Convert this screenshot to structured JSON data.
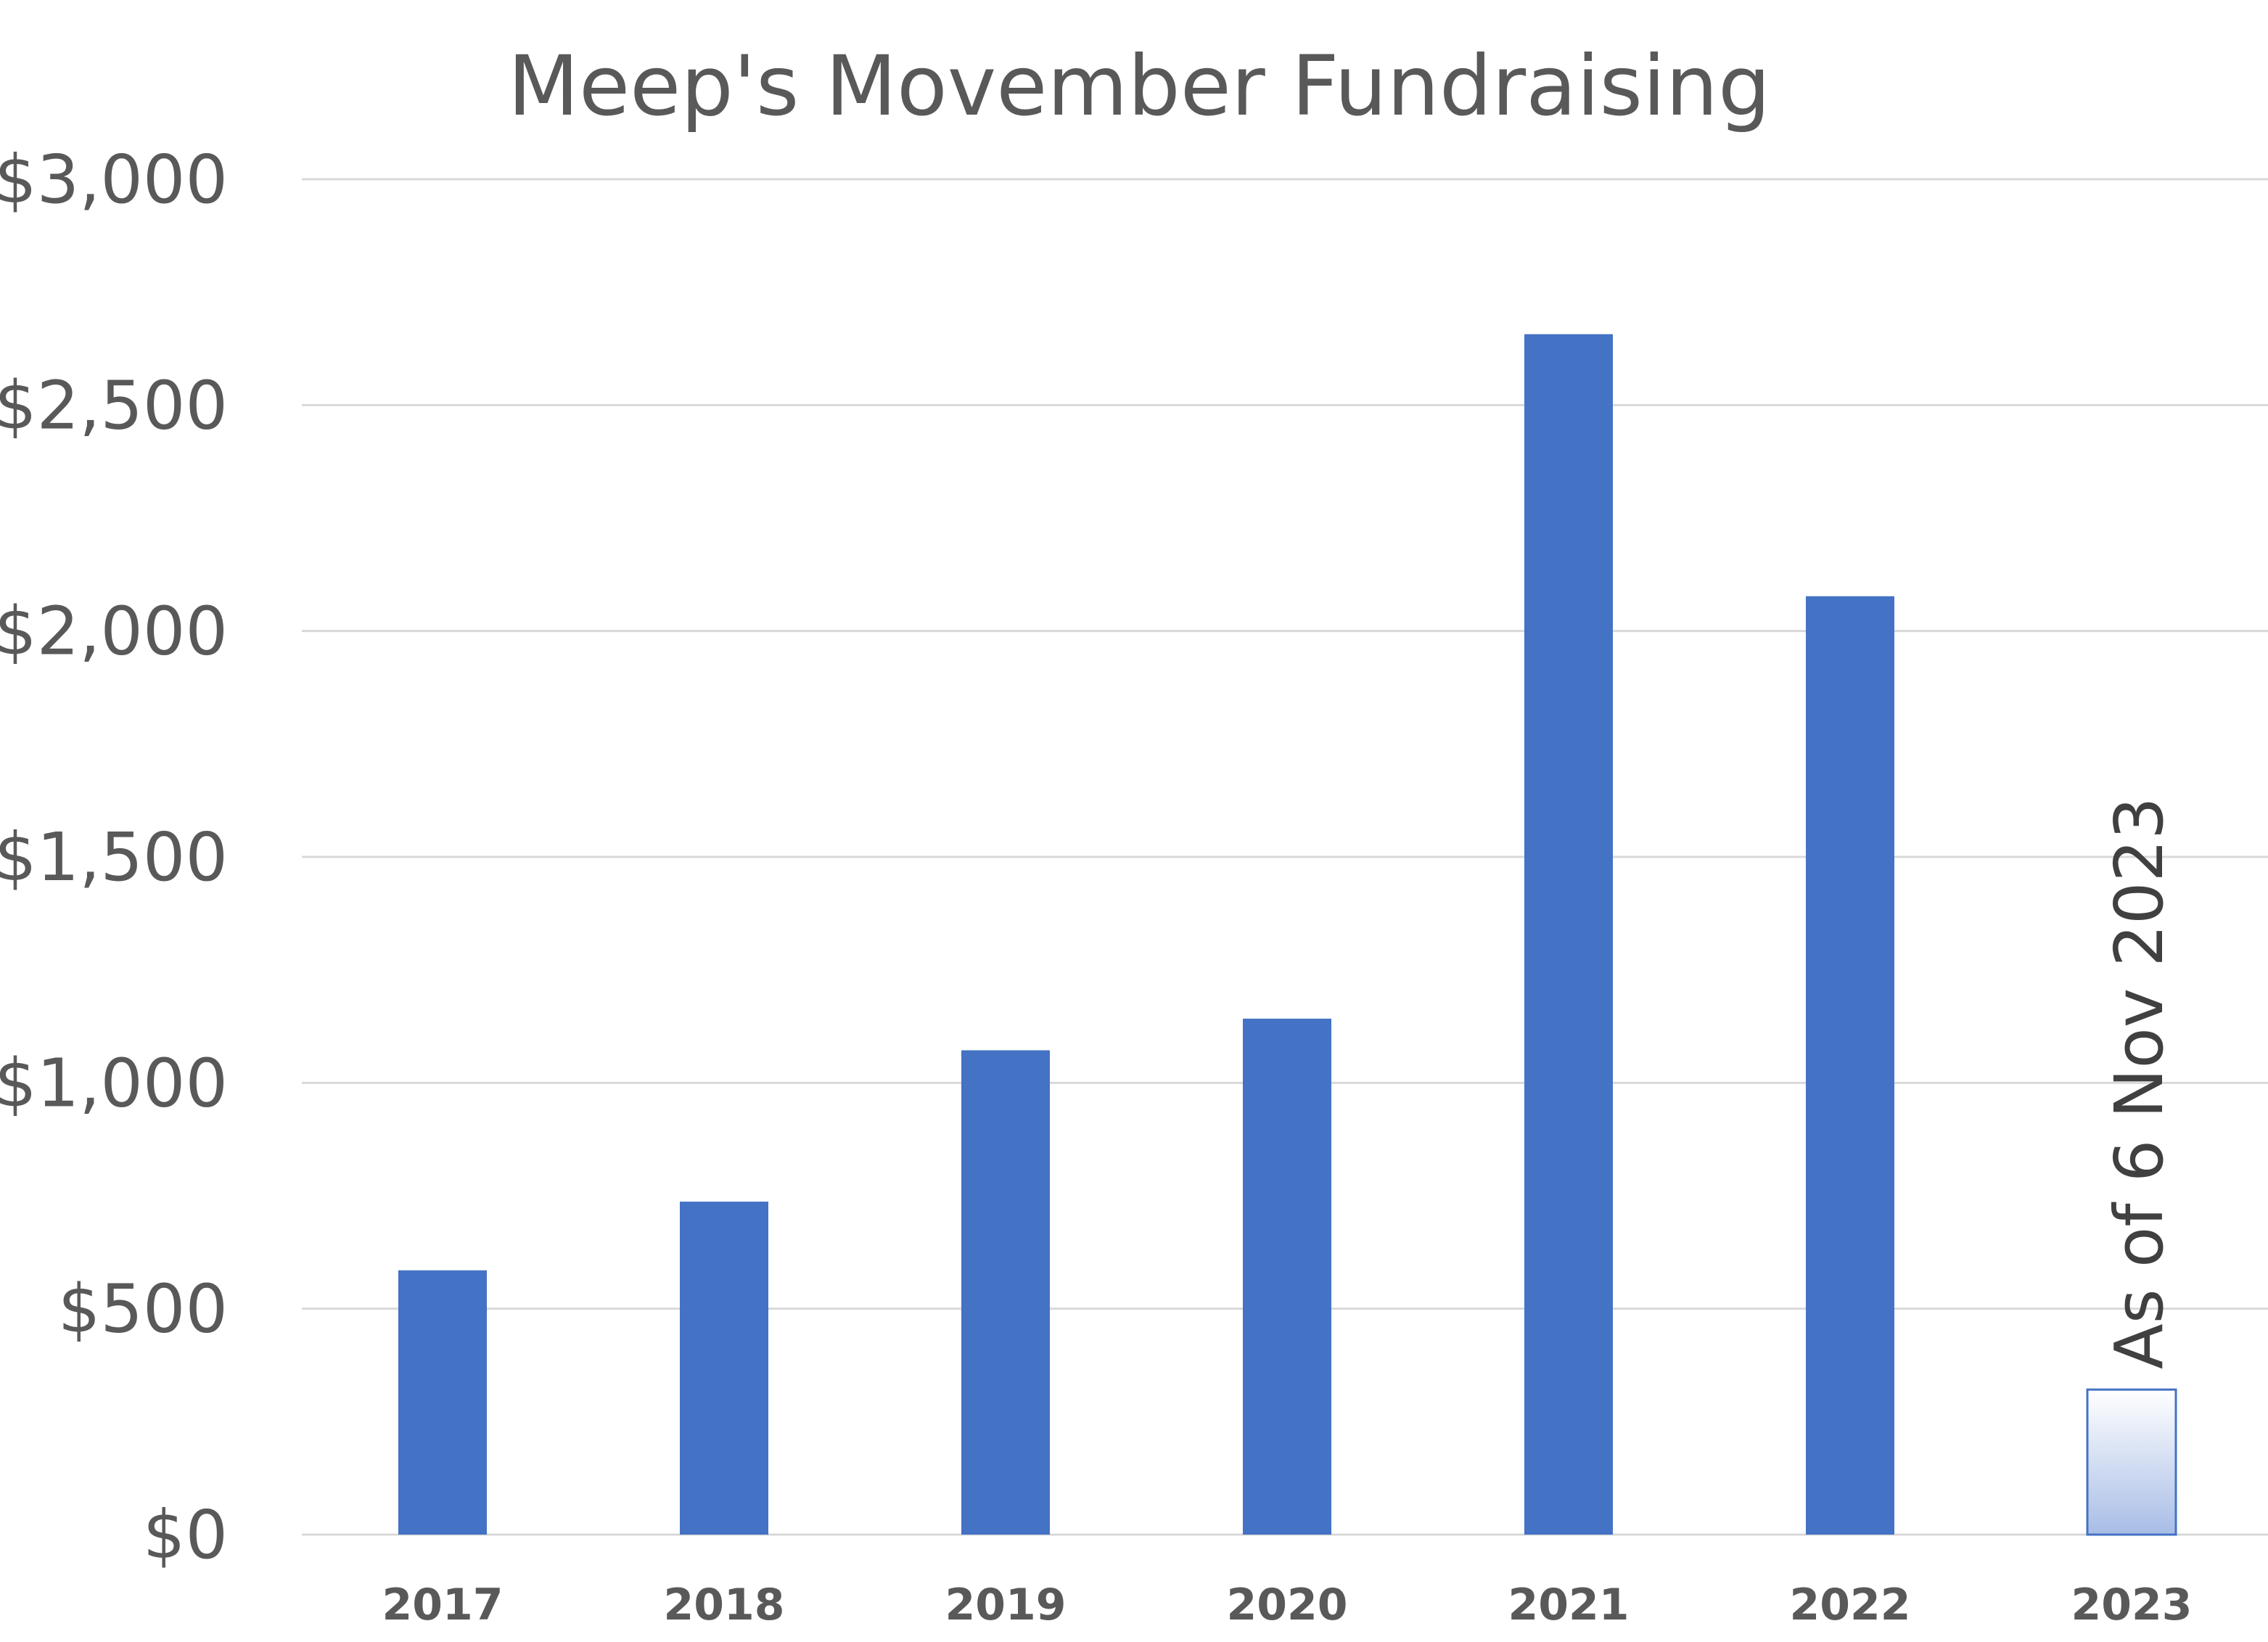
{
  "chart_data": {
    "type": "bar",
    "title": "Meep's Movember Fundraising",
    "xlabel": "",
    "ylabel": "",
    "categories": [
      "2017",
      "2018",
      "2019",
      "2020",
      "2021",
      "2022",
      "2023"
    ],
    "values": [
      585,
      737,
      1072,
      1142,
      2657,
      2077,
      321
    ],
    "ylim": [
      0,
      3000
    ],
    "yticks": [
      0,
      500,
      1000,
      1500,
      2000,
      2500,
      3000
    ],
    "ytick_labels": [
      "$0",
      "$500",
      "$1,000",
      "$1,500",
      "$2,000",
      "$2,500",
      "$3,000"
    ],
    "grid": true,
    "bar_color": "#4472C4",
    "highlight": {
      "category": "2023",
      "style": "gradient-fill-partial",
      "annotation": "As of 6 Nov 2023"
    }
  }
}
